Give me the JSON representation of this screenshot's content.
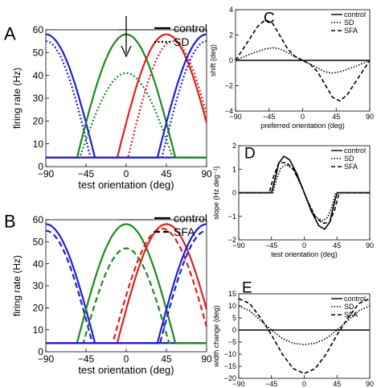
{
  "colors": {
    "blue": "#1f1fd6",
    "green": "#1a8a1a",
    "red": "#e01f1f",
    "black": "#000000"
  },
  "chart_data": [
    {
      "panel": "A",
      "type": "line",
      "xlabel": "test orientation (deg)",
      "ylabel": "firing rate (Hz)",
      "xlim": [
        -90,
        90
      ],
      "ylim": [
        0,
        60
      ],
      "xticks": [
        "−90",
        "−45",
        "0",
        "45",
        "90"
      ],
      "yticks": [
        "0",
        "10",
        "20",
        "30",
        "40",
        "50",
        "60"
      ],
      "legend": [
        "control",
        "SD"
      ],
      "legend_position": "top-right",
      "annotation": "arrow at 0 deg",
      "curves": [
        {
          "color": "blue",
          "style": "solid",
          "center": -90,
          "peak": 58,
          "baseline": 4,
          "half_width": 55
        },
        {
          "color": "blue",
          "style": "dotted",
          "center": -90,
          "peak": 55,
          "baseline": 4,
          "half_width": 50
        },
        {
          "color": "green",
          "style": "solid",
          "center": 0,
          "peak": 58,
          "baseline": 4,
          "half_width": 55
        },
        {
          "color": "green",
          "style": "dotted",
          "center": 0,
          "peak": 41,
          "baseline": 4,
          "half_width": 52
        },
        {
          "color": "red",
          "style": "solid",
          "center": 45,
          "peak": 58,
          "baseline": 4,
          "half_width": 55
        },
        {
          "color": "red",
          "style": "dotted",
          "center": 52,
          "peak": 55,
          "baseline": 4,
          "half_width": 50
        },
        {
          "color": "blue",
          "style": "solid",
          "center": 90,
          "peak": 58,
          "baseline": 4,
          "half_width": 55
        },
        {
          "color": "blue",
          "style": "dotted",
          "center": 90,
          "peak": 55,
          "baseline": 4,
          "half_width": 50
        }
      ]
    },
    {
      "panel": "B",
      "type": "line",
      "xlabel": "test orientation (deg)",
      "ylabel": "firing rate (Hz)",
      "xlim": [
        -90,
        90
      ],
      "ylim": [
        0,
        60
      ],
      "xticks": [
        "−90",
        "−45",
        "0",
        "45",
        "90"
      ],
      "yticks": [
        "0",
        "10",
        "20",
        "30",
        "40",
        "50",
        "60"
      ],
      "legend": [
        "control",
        "SFA"
      ],
      "legend_position": "top-right",
      "curves": [
        {
          "color": "blue",
          "style": "solid",
          "center": -90,
          "peak": 58,
          "baseline": 4,
          "half_width": 55
        },
        {
          "color": "blue",
          "style": "dashed",
          "center": -90,
          "peak": 55,
          "baseline": 4,
          "half_width": 52
        },
        {
          "color": "green",
          "style": "solid",
          "center": 0,
          "peak": 58,
          "baseline": 4,
          "half_width": 55
        },
        {
          "color": "green",
          "style": "dashed",
          "center": 0,
          "peak": 47,
          "baseline": 4,
          "half_width": 48
        },
        {
          "color": "red",
          "style": "solid",
          "center": 45,
          "peak": 58,
          "baseline": 4,
          "half_width": 55
        },
        {
          "color": "red",
          "style": "dashed",
          "center": 40,
          "peak": 56,
          "baseline": 4,
          "half_width": 55
        },
        {
          "color": "blue",
          "style": "solid",
          "center": 90,
          "peak": 58,
          "baseline": 4,
          "half_width": 55
        },
        {
          "color": "blue",
          "style": "dashed",
          "center": 90,
          "peak": 55,
          "baseline": 4,
          "half_width": 52
        }
      ]
    },
    {
      "panel": "C",
      "type": "line",
      "xlabel": "preferred orientation (deg)",
      "ylabel": "shift (deg)",
      "xlim": [
        -90,
        90
      ],
      "ylim": [
        -4,
        4
      ],
      "xticks": [
        "−90",
        "−45",
        "0",
        "45",
        "90"
      ],
      "yticks": [
        "−4",
        "−2",
        "0",
        "2",
        "4"
      ],
      "legend": [
        "control",
        "SD",
        "SFA"
      ],
      "legend_position": "top-right",
      "series": [
        {
          "name": "control",
          "style": "solid",
          "x": [
            -90,
            -70,
            -50,
            -30,
            -10,
            0,
            10,
            30,
            50,
            70,
            90
          ],
          "y": [
            0,
            0,
            0,
            0,
            0,
            0,
            0,
            0,
            0,
            0,
            0
          ]
        },
        {
          "name": "SD",
          "style": "dotted",
          "x": [
            -90,
            -70,
            -50,
            -40,
            -30,
            -10,
            0,
            10,
            30,
            40,
            50,
            70,
            90
          ],
          "y": [
            0,
            0.5,
            0.9,
            1.0,
            0.9,
            0.3,
            0,
            -0.3,
            -0.9,
            -1.0,
            -0.9,
            -0.5,
            0
          ]
        },
        {
          "name": "SFA",
          "style": "dashed",
          "x": [
            -90,
            -70,
            -60,
            -50,
            -40,
            -30,
            -20,
            -10,
            0,
            10,
            20,
            30,
            40,
            50,
            60,
            70,
            90
          ],
          "y": [
            0,
            1.8,
            2.7,
            3.2,
            2.9,
            1.9,
            0.9,
            0.3,
            0,
            -0.3,
            -0.9,
            -1.9,
            -2.9,
            -3.2,
            -2.7,
            -1.8,
            0
          ]
        }
      ]
    },
    {
      "panel": "D",
      "type": "line",
      "xlabel": "test orientation (deg)",
      "ylabel": "slope (Hz deg⁻¹)",
      "xlim": [
        -90,
        90
      ],
      "ylim": [
        -2,
        2
      ],
      "xticks": [
        "−90",
        "−45",
        "0",
        "45",
        "90"
      ],
      "yticks": [
        "−2",
        "−1",
        "0",
        "1",
        "2"
      ],
      "legend": [
        "control",
        "SD",
        "SFA"
      ],
      "legend_position": "top-right",
      "series": [
        {
          "name": "control",
          "style": "solid",
          "x": [
            -90,
            -45,
            -40,
            -35,
            -28,
            -20,
            -10,
            0,
            10,
            20,
            28,
            35,
            40,
            45,
            90
          ],
          "y": [
            0,
            0,
            0.6,
            1.25,
            1.55,
            1.4,
            0.8,
            0,
            -0.8,
            -1.4,
            -1.55,
            -1.25,
            -0.6,
            0,
            0
          ]
        },
        {
          "name": "SD",
          "style": "dotted",
          "x": [
            -90,
            -43,
            -38,
            -32,
            -25,
            -15,
            -5,
            0,
            5,
            15,
            25,
            32,
            38,
            43,
            90
          ],
          "y": [
            0,
            0,
            0.6,
            1.05,
            1.2,
            1.0,
            0.35,
            0,
            -0.35,
            -1.0,
            -1.2,
            -1.05,
            -0.6,
            0,
            0
          ]
        },
        {
          "name": "SFA",
          "style": "dashed",
          "x": [
            -90,
            -48,
            -42,
            -35,
            -25,
            -15,
            -5,
            0,
            5,
            15,
            25,
            35,
            42,
            48,
            90
          ],
          "y": [
            0,
            0,
            0.7,
            1.25,
            1.3,
            1.0,
            0.4,
            0,
            -0.4,
            -1.0,
            -1.3,
            -1.25,
            -0.7,
            0,
            0
          ]
        }
      ]
    },
    {
      "panel": "E",
      "type": "line",
      "xlabel": "preferred orientation (deg)",
      "ylabel": "width change (deg)",
      "xlim": [
        -90,
        90
      ],
      "ylim": [
        -20,
        15
      ],
      "xticks": [
        "−90",
        "−45",
        "0",
        "45",
        "90"
      ],
      "yticks": [
        "−20",
        "−15",
        "−10",
        "−5",
        "0",
        "5",
        "10",
        "15"
      ],
      "legend": [
        "control",
        "SD",
        "SFA"
      ],
      "legend_position": "top-right",
      "series": [
        {
          "name": "control",
          "style": "solid",
          "x": [
            -90,
            -45,
            0,
            45,
            90
          ],
          "y": [
            0,
            0,
            0,
            0,
            0
          ]
        },
        {
          "name": "SD",
          "style": "dotted",
          "x": [
            -90,
            -75,
            -60,
            -45,
            -30,
            -15,
            0,
            15,
            30,
            45,
            60,
            75,
            90
          ],
          "y": [
            10,
            8,
            4,
            0,
            -3.5,
            -5.5,
            -6,
            -5.5,
            -3.5,
            0,
            4,
            8,
            10
          ]
        },
        {
          "name": "SFA",
          "style": "dashed",
          "x": [
            -90,
            -75,
            -60,
            -45,
            -30,
            -15,
            0,
            15,
            30,
            45,
            60,
            75,
            90
          ],
          "y": [
            13,
            11,
            5,
            -2,
            -10,
            -16,
            -18,
            -16,
            -10,
            -2,
            5,
            11,
            13
          ]
        }
      ]
    }
  ]
}
